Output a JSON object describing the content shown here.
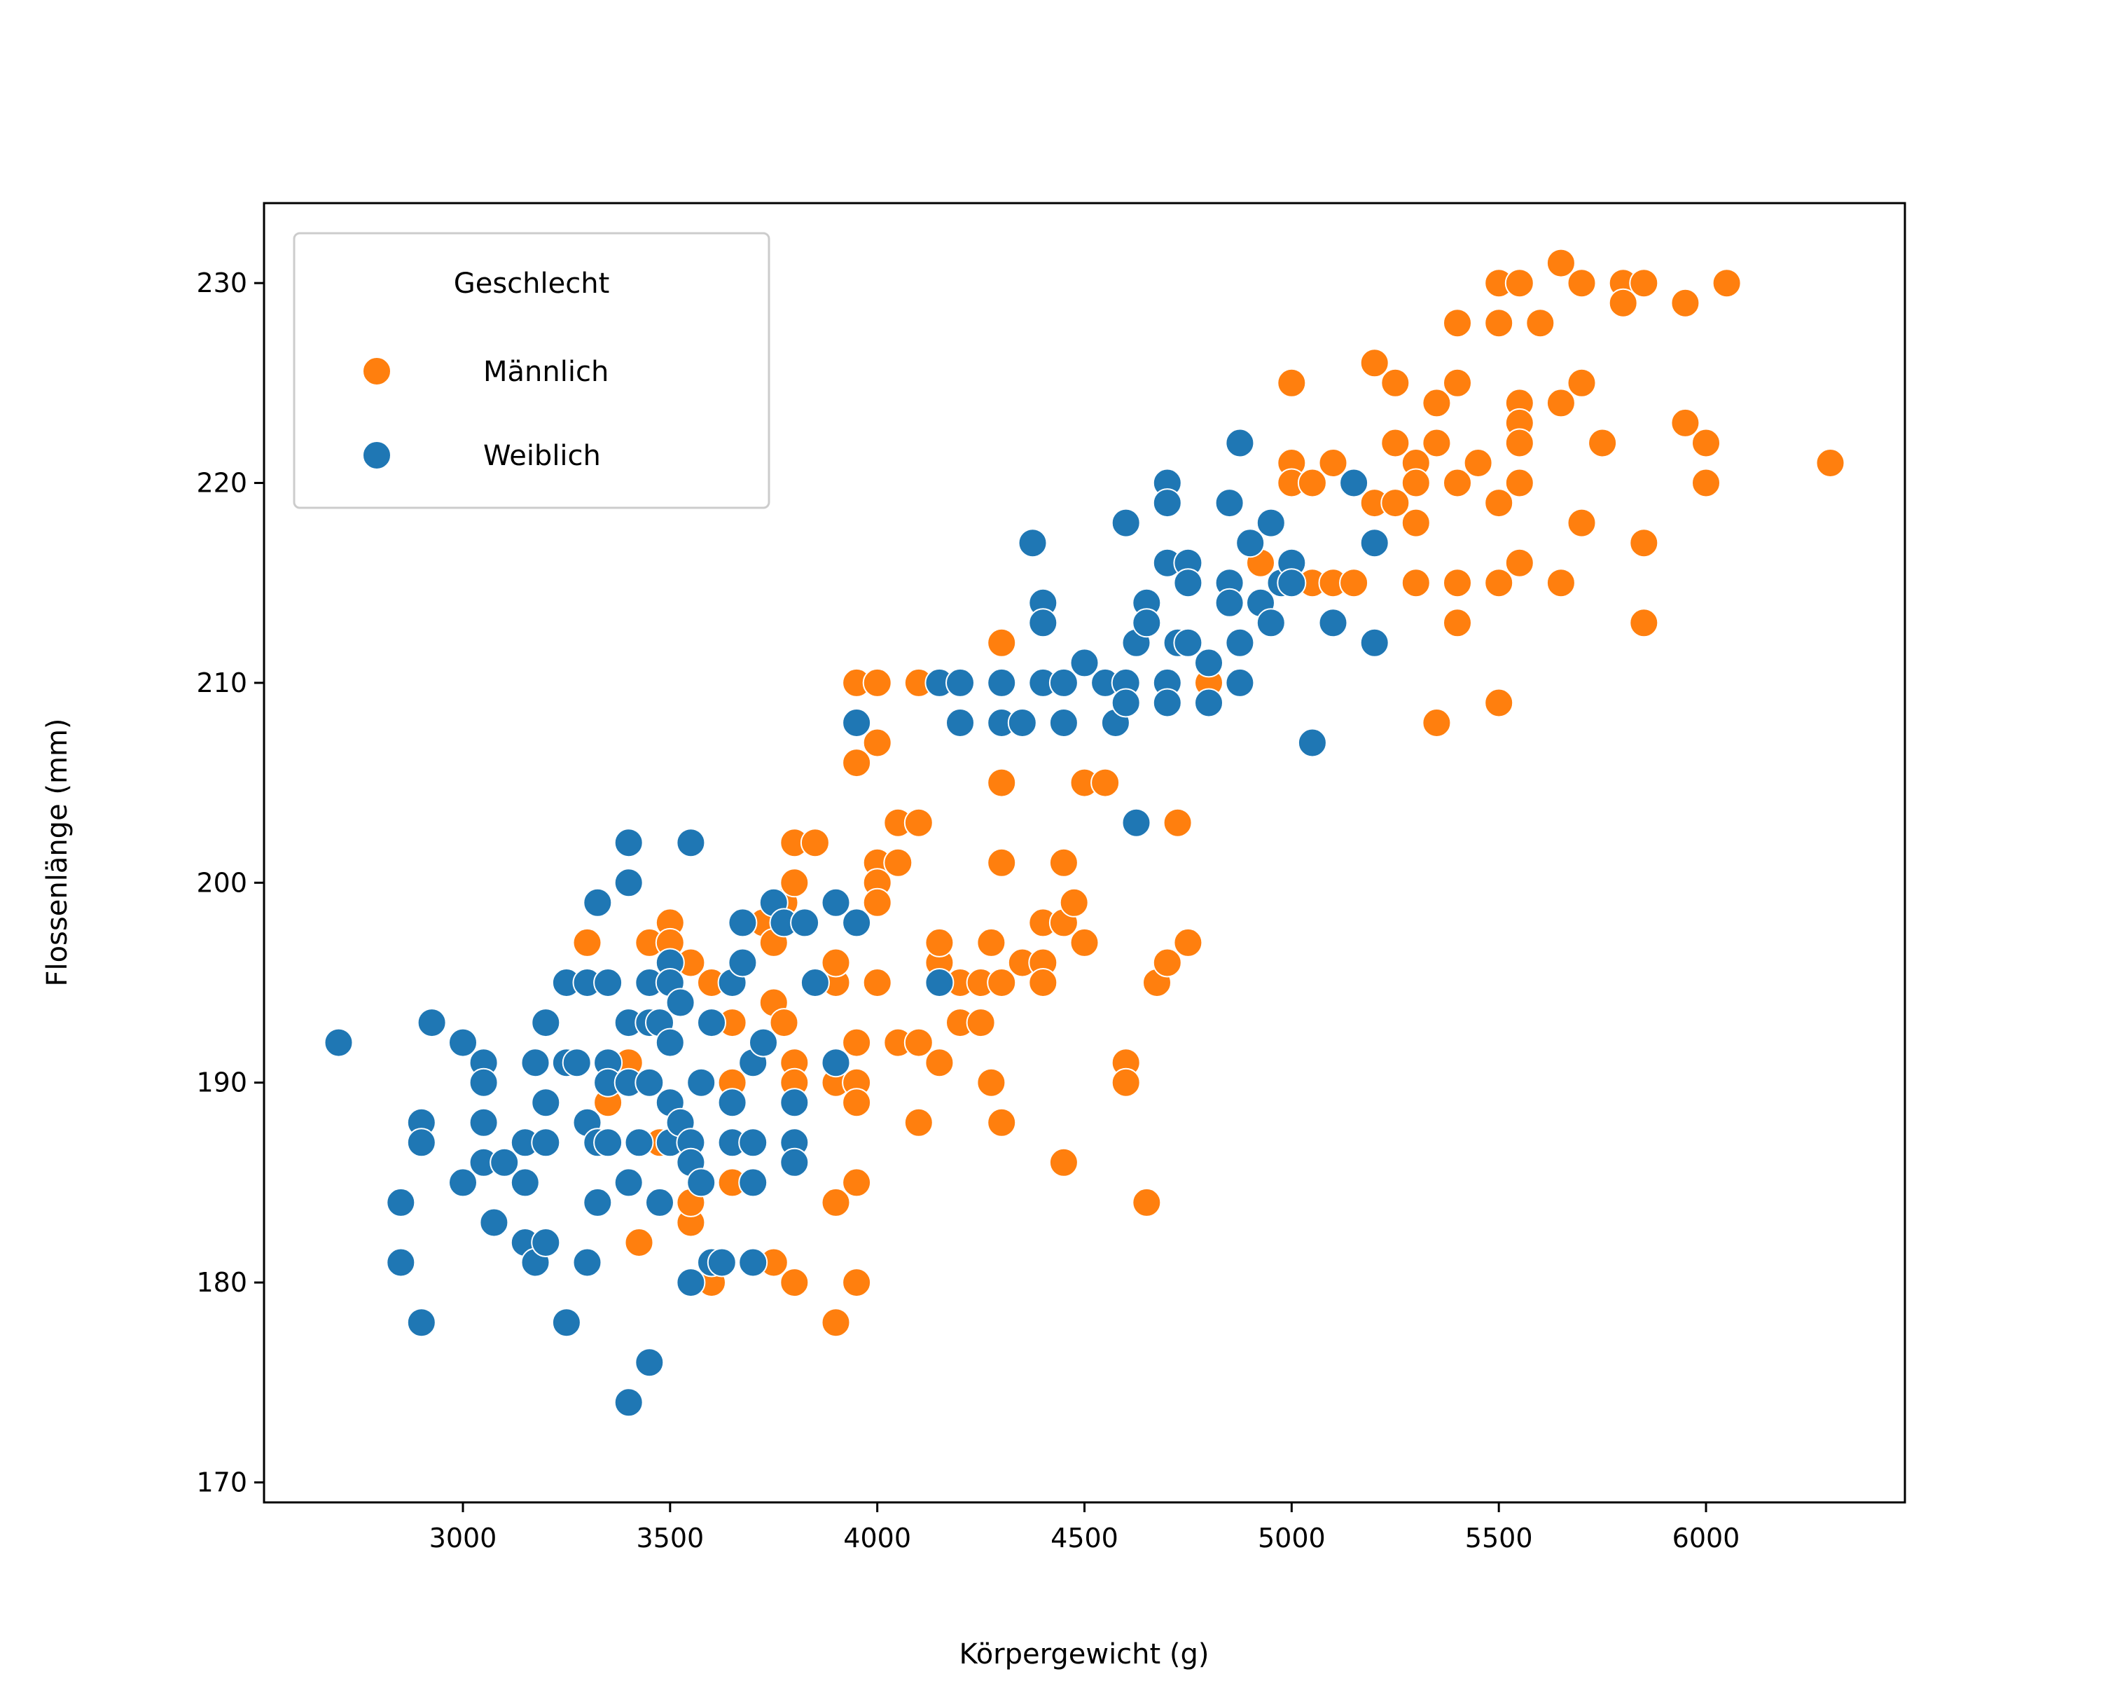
{
  "chart_data": {
    "type": "scatter",
    "xlabel": "Körpergewicht (g)",
    "ylabel": "Flossenlänge (mm)",
    "xlim": [
      2520,
      6480
    ],
    "ylim": [
      169,
      234
    ],
    "xticks": [
      3000,
      3500,
      4000,
      4500,
      5000,
      5500,
      6000
    ],
    "yticks": [
      170,
      180,
      190,
      200,
      210,
      220,
      230
    ],
    "grid": false,
    "legend": {
      "title": "Geschlecht",
      "placement": "top-left"
    },
    "series": [
      {
        "name": "Männlich",
        "color": "#ff7f0e",
        "points": [
          [
            3300,
            197
          ],
          [
            3350,
            189
          ],
          [
            3400,
            191
          ],
          [
            3425,
            182
          ],
          [
            3450,
            197
          ],
          [
            3475,
            187
          ],
          [
            3500,
            198
          ],
          [
            3500,
            197
          ],
          [
            3550,
            196
          ],
          [
            3550,
            183
          ],
          [
            3550,
            184
          ],
          [
            3600,
            195
          ],
          [
            3600,
            180
          ],
          [
            3650,
            193
          ],
          [
            3650,
            185
          ],
          [
            3650,
            190
          ],
          [
            3700,
            191
          ],
          [
            3725,
            198
          ],
          [
            3750,
            197
          ],
          [
            3750,
            194
          ],
          [
            3750,
            181
          ],
          [
            3775,
            199
          ],
          [
            3775,
            193
          ],
          [
            3800,
            202
          ],
          [
            3800,
            200
          ],
          [
            3800,
            191
          ],
          [
            3800,
            190
          ],
          [
            3800,
            180
          ],
          [
            3850,
            202
          ],
          [
            3900,
            195
          ],
          [
            3900,
            196
          ],
          [
            3900,
            190
          ],
          [
            3900,
            184
          ],
          [
            3900,
            178
          ],
          [
            3950,
            190
          ],
          [
            3950,
            189
          ],
          [
            3950,
            185
          ],
          [
            3950,
            180
          ],
          [
            3950,
            192
          ],
          [
            3950,
            206
          ],
          [
            3950,
            210
          ],
          [
            4000,
            207
          ],
          [
            4000,
            201
          ],
          [
            4000,
            200
          ],
          [
            4000,
            199
          ],
          [
            4000,
            195
          ],
          [
            4000,
            210
          ],
          [
            4050,
            203
          ],
          [
            4050,
            201
          ],
          [
            4050,
            192
          ],
          [
            4100,
            203
          ],
          [
            4100,
            210
          ],
          [
            4100,
            192
          ],
          [
            4100,
            188
          ],
          [
            4150,
            196
          ],
          [
            4150,
            197
          ],
          [
            4150,
            191
          ],
          [
            4200,
            195
          ],
          [
            4200,
            193
          ],
          [
            4250,
            195
          ],
          [
            4250,
            193
          ],
          [
            4275,
            197
          ],
          [
            4275,
            190
          ],
          [
            4300,
            212
          ],
          [
            4300,
            205
          ],
          [
            4300,
            201
          ],
          [
            4300,
            195
          ],
          [
            4300,
            188
          ],
          [
            4350,
            196
          ],
          [
            4400,
            198
          ],
          [
            4400,
            196
          ],
          [
            4400,
            195
          ],
          [
            4450,
            201
          ],
          [
            4450,
            198
          ],
          [
            4450,
            186
          ],
          [
            4475,
            199
          ],
          [
            4500,
            205
          ],
          [
            4500,
            197
          ],
          [
            4550,
            205
          ],
          [
            4600,
            191
          ],
          [
            4600,
            190
          ],
          [
            4650,
            184
          ],
          [
            4675,
            195
          ],
          [
            4700,
            196
          ],
          [
            4725,
            203
          ],
          [
            4750,
            197
          ],
          [
            4800,
            210
          ],
          [
            4925,
            216
          ],
          [
            5000,
            225
          ],
          [
            5000,
            221
          ],
          [
            5000,
            220
          ],
          [
            5050,
            220
          ],
          [
            5050,
            215
          ],
          [
            5100,
            221
          ],
          [
            5100,
            215
          ],
          [
            5150,
            215
          ],
          [
            5200,
            226
          ],
          [
            5200,
            219
          ],
          [
            5250,
            225
          ],
          [
            5250,
            222
          ],
          [
            5250,
            219
          ],
          [
            5300,
            221
          ],
          [
            5300,
            220
          ],
          [
            5300,
            218
          ],
          [
            5300,
            215
          ],
          [
            5350,
            224
          ],
          [
            5350,
            222
          ],
          [
            5350,
            208
          ],
          [
            5400,
            228
          ],
          [
            5400,
            225
          ],
          [
            5400,
            220
          ],
          [
            5400,
            215
          ],
          [
            5400,
            213
          ],
          [
            5450,
            221
          ],
          [
            5500,
            230
          ],
          [
            5500,
            228
          ],
          [
            5500,
            219
          ],
          [
            5500,
            215
          ],
          [
            5500,
            209
          ],
          [
            5550,
            230
          ],
          [
            5550,
            224
          ],
          [
            5550,
            223
          ],
          [
            5550,
            222
          ],
          [
            5550,
            220
          ],
          [
            5550,
            216
          ],
          [
            5600,
            228
          ],
          [
            5650,
            231
          ],
          [
            5650,
            224
          ],
          [
            5650,
            215
          ],
          [
            5700,
            230
          ],
          [
            5700,
            225
          ],
          [
            5700,
            218
          ],
          [
            5750,
            222
          ],
          [
            5800,
            230
          ],
          [
            5800,
            229
          ],
          [
            5850,
            230
          ],
          [
            5850,
            217
          ],
          [
            5850,
            213
          ],
          [
            5950,
            229
          ],
          [
            5950,
            223
          ],
          [
            6000,
            222
          ],
          [
            6000,
            220
          ],
          [
            6050,
            230
          ],
          [
            6300,
            221
          ]
        ]
      },
      {
        "name": "Weiblich",
        "color": "#1f77b4",
        "points": [
          [
            2700,
            192
          ],
          [
            2850,
            184
          ],
          [
            2850,
            181
          ],
          [
            2900,
            188
          ],
          [
            2900,
            187
          ],
          [
            2900,
            178
          ],
          [
            2925,
            193
          ],
          [
            3000,
            192
          ],
          [
            3000,
            185
          ],
          [
            3050,
            191
          ],
          [
            3050,
            190
          ],
          [
            3050,
            188
          ],
          [
            3050,
            186
          ],
          [
            3075,
            183
          ],
          [
            3100,
            186
          ],
          [
            3150,
            187
          ],
          [
            3150,
            185
          ],
          [
            3150,
            182
          ],
          [
            3175,
            191
          ],
          [
            3175,
            181
          ],
          [
            3200,
            193
          ],
          [
            3200,
            189
          ],
          [
            3200,
            187
          ],
          [
            3200,
            182
          ],
          [
            3250,
            195
          ],
          [
            3250,
            191
          ],
          [
            3250,
            178
          ],
          [
            3275,
            191
          ],
          [
            3300,
            195
          ],
          [
            3300,
            188
          ],
          [
            3300,
            181
          ],
          [
            3325,
            187
          ],
          [
            3325,
            184
          ],
          [
            3325,
            199
          ],
          [
            3350,
            195
          ],
          [
            3350,
            191
          ],
          [
            3350,
            187
          ],
          [
            3350,
            190
          ],
          [
            3400,
            202
          ],
          [
            3400,
            200
          ],
          [
            3400,
            193
          ],
          [
            3400,
            190
          ],
          [
            3400,
            185
          ],
          [
            3400,
            174
          ],
          [
            3425,
            187
          ],
          [
            3450,
            195
          ],
          [
            3450,
            193
          ],
          [
            3450,
            190
          ],
          [
            3450,
            176
          ],
          [
            3475,
            184
          ],
          [
            3475,
            193
          ],
          [
            3500,
            196
          ],
          [
            3500,
            195
          ],
          [
            3500,
            192
          ],
          [
            3500,
            189
          ],
          [
            3500,
            187
          ],
          [
            3525,
            194
          ],
          [
            3525,
            188
          ],
          [
            3550,
            202
          ],
          [
            3550,
            187
          ],
          [
            3550,
            186
          ],
          [
            3550,
            180
          ],
          [
            3575,
            190
          ],
          [
            3575,
            185
          ],
          [
            3600,
            193
          ],
          [
            3600,
            181
          ],
          [
            3625,
            181
          ],
          [
            3650,
            195
          ],
          [
            3650,
            189
          ],
          [
            3650,
            187
          ],
          [
            3675,
            196
          ],
          [
            3675,
            198
          ],
          [
            3700,
            191
          ],
          [
            3700,
            187
          ],
          [
            3700,
            185
          ],
          [
            3700,
            181
          ],
          [
            3725,
            192
          ],
          [
            3750,
            199
          ],
          [
            3775,
            198
          ],
          [
            3800,
            189
          ],
          [
            3800,
            187
          ],
          [
            3800,
            186
          ],
          [
            3825,
            198
          ],
          [
            3850,
            195
          ],
          [
            3900,
            199
          ],
          [
            3900,
            191
          ],
          [
            3950,
            198
          ],
          [
            3950,
            208
          ],
          [
            4150,
            210
          ],
          [
            4150,
            195
          ],
          [
            4200,
            210
          ],
          [
            4200,
            208
          ],
          [
            4300,
            210
          ],
          [
            4300,
            208
          ],
          [
            4350,
            208
          ],
          [
            4375,
            217
          ],
          [
            4400,
            214
          ],
          [
            4400,
            213
          ],
          [
            4400,
            210
          ],
          [
            4450,
            210
          ],
          [
            4450,
            208
          ],
          [
            4500,
            211
          ],
          [
            4550,
            210
          ],
          [
            4575,
            208
          ],
          [
            4600,
            218
          ],
          [
            4600,
            210
          ],
          [
            4600,
            209
          ],
          [
            4625,
            212
          ],
          [
            4625,
            203
          ],
          [
            4650,
            214
          ],
          [
            4650,
            213
          ],
          [
            4700,
            220
          ],
          [
            4700,
            219
          ],
          [
            4700,
            216
          ],
          [
            4700,
            210
          ],
          [
            4700,
            209
          ],
          [
            4725,
            212
          ],
          [
            4750,
            216
          ],
          [
            4750,
            215
          ],
          [
            4750,
            212
          ],
          [
            4800,
            211
          ],
          [
            4800,
            209
          ],
          [
            4850,
            219
          ],
          [
            4850,
            215
          ],
          [
            4850,
            214
          ],
          [
            4875,
            222
          ],
          [
            4875,
            212
          ],
          [
            4875,
            210
          ],
          [
            4900,
            217
          ],
          [
            4925,
            214
          ],
          [
            4950,
            218
          ],
          [
            4950,
            213
          ],
          [
            4975,
            215
          ],
          [
            5000,
            216
          ],
          [
            5000,
            215
          ],
          [
            5050,
            207
          ],
          [
            5100,
            213
          ],
          [
            5150,
            220
          ],
          [
            5200,
            217
          ],
          [
            5200,
            212
          ]
        ]
      }
    ]
  }
}
